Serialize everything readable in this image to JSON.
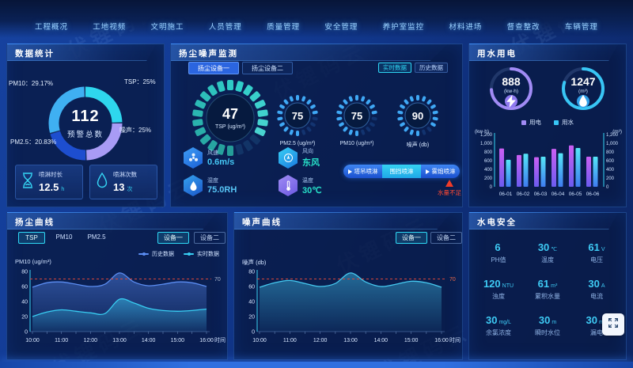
{
  "watermark": {
    "text": "伏锂码云"
  },
  "nav": {
    "items": [
      {
        "id": "overview",
        "label": "工程概况"
      },
      {
        "id": "site-video",
        "label": "工地视频"
      },
      {
        "id": "civilized-construction",
        "label": "文明施工"
      },
      {
        "id": "personnel",
        "label": "人员管理"
      },
      {
        "id": "quality",
        "label": "质量管理"
      },
      {
        "id": "safety",
        "label": "安全管理"
      },
      {
        "id": "curing-room",
        "label": "养护室监控"
      },
      {
        "id": "material-entry",
        "label": "材料进场"
      },
      {
        "id": "inspection",
        "label": "督查整改"
      },
      {
        "id": "vehicle",
        "label": "车辆管理"
      }
    ]
  },
  "panels": {
    "stats": {
      "title": "数据统计",
      "donut_center": {
        "value": "112",
        "label": "预警总数"
      },
      "donut_labels": [
        {
          "text": "PM10：29.17%"
        },
        {
          "text": "TSP：25%"
        },
        {
          "text": "PM2.5：20.83%"
        },
        {
          "text": "噪声：25%"
        }
      ],
      "cards": [
        {
          "label": "喷淋时长",
          "value": "12.5",
          "unit": "h"
        },
        {
          "label": "喷淋次数",
          "value": "13",
          "unit": "次"
        }
      ]
    },
    "dust_noise": {
      "title": "扬尘噪声监测",
      "tabs": [
        {
          "label": "扬尘设备一"
        },
        {
          "label": "扬尘设备二"
        }
      ],
      "modes": [
        {
          "label": "实时数据"
        },
        {
          "label": "历史数据"
        }
      ],
      "gauges": [
        {
          "value": "47",
          "label": "TSP",
          "unit": "(ug/m³)"
        },
        {
          "value": "75",
          "label": "PM2.5",
          "unit": "(ug/m³)"
        },
        {
          "value": "75",
          "label": "PM10",
          "unit": "(ug/m³)"
        },
        {
          "value": "90",
          "label": "噪声",
          "unit": "(db)"
        }
      ],
      "weather": [
        {
          "label": "风速",
          "value": "0.6m/s"
        },
        {
          "label": "风向",
          "value": "东风"
        },
        {
          "label": "湿度",
          "value": "75.0RH"
        },
        {
          "label": "温度",
          "value": "30℃"
        }
      ],
      "spray_buttons": [
        {
          "label": "塔吊喷淋"
        },
        {
          "label": "围挡喷淋"
        },
        {
          "label": "雾炮喷淋"
        }
      ],
      "warning": "水量不足"
    },
    "water_power": {
      "title": "用水用电",
      "rings": [
        {
          "value": "888",
          "unit": "(kw·h)"
        },
        {
          "value": "1247",
          "unit": "(m³)"
        }
      ],
      "legend": [
        {
          "label": "用电"
        },
        {
          "label": "用水"
        }
      ]
    },
    "dust_curve": {
      "title": "扬尘曲线",
      "tabs": [
        {
          "label": "TSP"
        },
        {
          "label": "PM10"
        },
        {
          "label": "PM2.5"
        }
      ],
      "devices": [
        {
          "label": "设备一"
        },
        {
          "label": "设备二"
        }
      ],
      "legend": [
        {
          "label": "历史数据"
        },
        {
          "label": "实时数据"
        }
      ]
    },
    "noise_curve": {
      "title": "噪声曲线",
      "devices": [
        {
          "label": "设备一"
        },
        {
          "label": "设备二"
        }
      ]
    },
    "water_safety": {
      "title": "水电安全",
      "metrics": [
        {
          "value": "6",
          "unit": "",
          "label": "PH值"
        },
        {
          "value": "30",
          "unit": "℃",
          "label": "温度"
        },
        {
          "value": "61",
          "unit": "V",
          "label": "电压"
        },
        {
          "value": "120",
          "unit": "NTU",
          "label": "浊度"
        },
        {
          "value": "61",
          "unit": "m³",
          "label": "累积水量"
        },
        {
          "value": "30",
          "unit": "A",
          "label": "电流"
        },
        {
          "value": "30",
          "unit": "mg/L",
          "label": "余氯浓度"
        },
        {
          "value": "30",
          "unit": "m",
          "label": "瞬时水位"
        },
        {
          "value": "30",
          "unit": "mA",
          "label": "漏电"
        }
      ]
    }
  },
  "chart_data": [
    {
      "type": "pie",
      "title": "预警总数",
      "center_value": 112,
      "slices": [
        {
          "label": "TSP",
          "value": 25,
          "color": "#2ed7ee"
        },
        {
          "label": "噪声",
          "value": 25,
          "color": "#a89bf5"
        },
        {
          "label": "PM2.5",
          "value": 20.83,
          "color": "#1d4ecf"
        },
        {
          "label": "PM10",
          "value": 29.17,
          "color": "#3fb0f2"
        }
      ]
    },
    {
      "type": "bar",
      "title": "用水用电",
      "categories": [
        "06-01",
        "06-02",
        "06-03",
        "06-04",
        "06-05",
        "06-06"
      ],
      "series": [
        {
          "name": "用电",
          "color_top": "#cb5ff2",
          "color_bottom": "#6b5cf0",
          "values": [
            880,
            730,
            680,
            870,
            950,
            690
          ]
        },
        {
          "name": "用水",
          "color_top": "#55e6f8",
          "color_bottom": "#3f7cf0",
          "values": [
            620,
            760,
            690,
            770,
            890,
            690
          ]
        }
      ],
      "ylabel": "(kw·h)",
      "y2label": "(m³)",
      "ylim": [
        0,
        1200
      ],
      "yticks": [
        "0",
        "200",
        "400",
        "600",
        "800",
        "1,000",
        "1,200"
      ],
      "legend_position": "top"
    },
    {
      "type": "line",
      "title": "扬尘曲线",
      "ylabel": "PM10 (ug/m³)",
      "xlabel": "时间",
      "ylim": [
        0,
        80
      ],
      "yticks": [
        0,
        20,
        40,
        60,
        80
      ],
      "x": [
        "10:00",
        "10:30",
        "11:00",
        "11:30",
        "12:00",
        "12:30",
        "13:00",
        "13:30",
        "14:00",
        "14:30",
        "15:00",
        "15:30",
        "16:00"
      ],
      "xticks": [
        "10:00",
        "11:00",
        "12:00",
        "13:00",
        "14:00",
        "15:00",
        "16:00"
      ],
      "threshold": 70,
      "threshold_label": "70",
      "threshold_color": "#aab8d0",
      "series": [
        {
          "name": "历史数据",
          "color": "#5b8df2",
          "values": [
            59,
            65,
            66,
            63,
            60,
            63,
            78,
            66,
            61,
            63,
            66,
            65,
            60
          ]
        },
        {
          "name": "实时数据",
          "color": "#38cdf2",
          "values": [
            20,
            26,
            29,
            27,
            25,
            24,
            43,
            38,
            31,
            28,
            27,
            28,
            30
          ]
        }
      ]
    },
    {
      "type": "line",
      "title": "噪声曲线",
      "ylabel": "噪声 (db)",
      "xlabel": "时间",
      "ylim": [
        0,
        80
      ],
      "yticks": [
        0,
        20,
        40,
        60,
        80
      ],
      "x": [
        "10:00",
        "10:30",
        "11:00",
        "11:30",
        "12:00",
        "12:30",
        "13:00",
        "13:30",
        "14:00",
        "14:30",
        "15:00",
        "15:30",
        "16:00"
      ],
      "xticks": [
        "10:00",
        "11:00",
        "12:00",
        "13:00",
        "14:00",
        "15:00",
        "16:00"
      ],
      "threshold": 70,
      "threshold_label": "70",
      "threshold_color": "#ef6a4a",
      "series": [
        {
          "name": "噪声",
          "color": "#45c9f0",
          "values": [
            59,
            65,
            68,
            64,
            60,
            64,
            78,
            66,
            60,
            63,
            67,
            65,
            59
          ]
        }
      ]
    }
  ]
}
